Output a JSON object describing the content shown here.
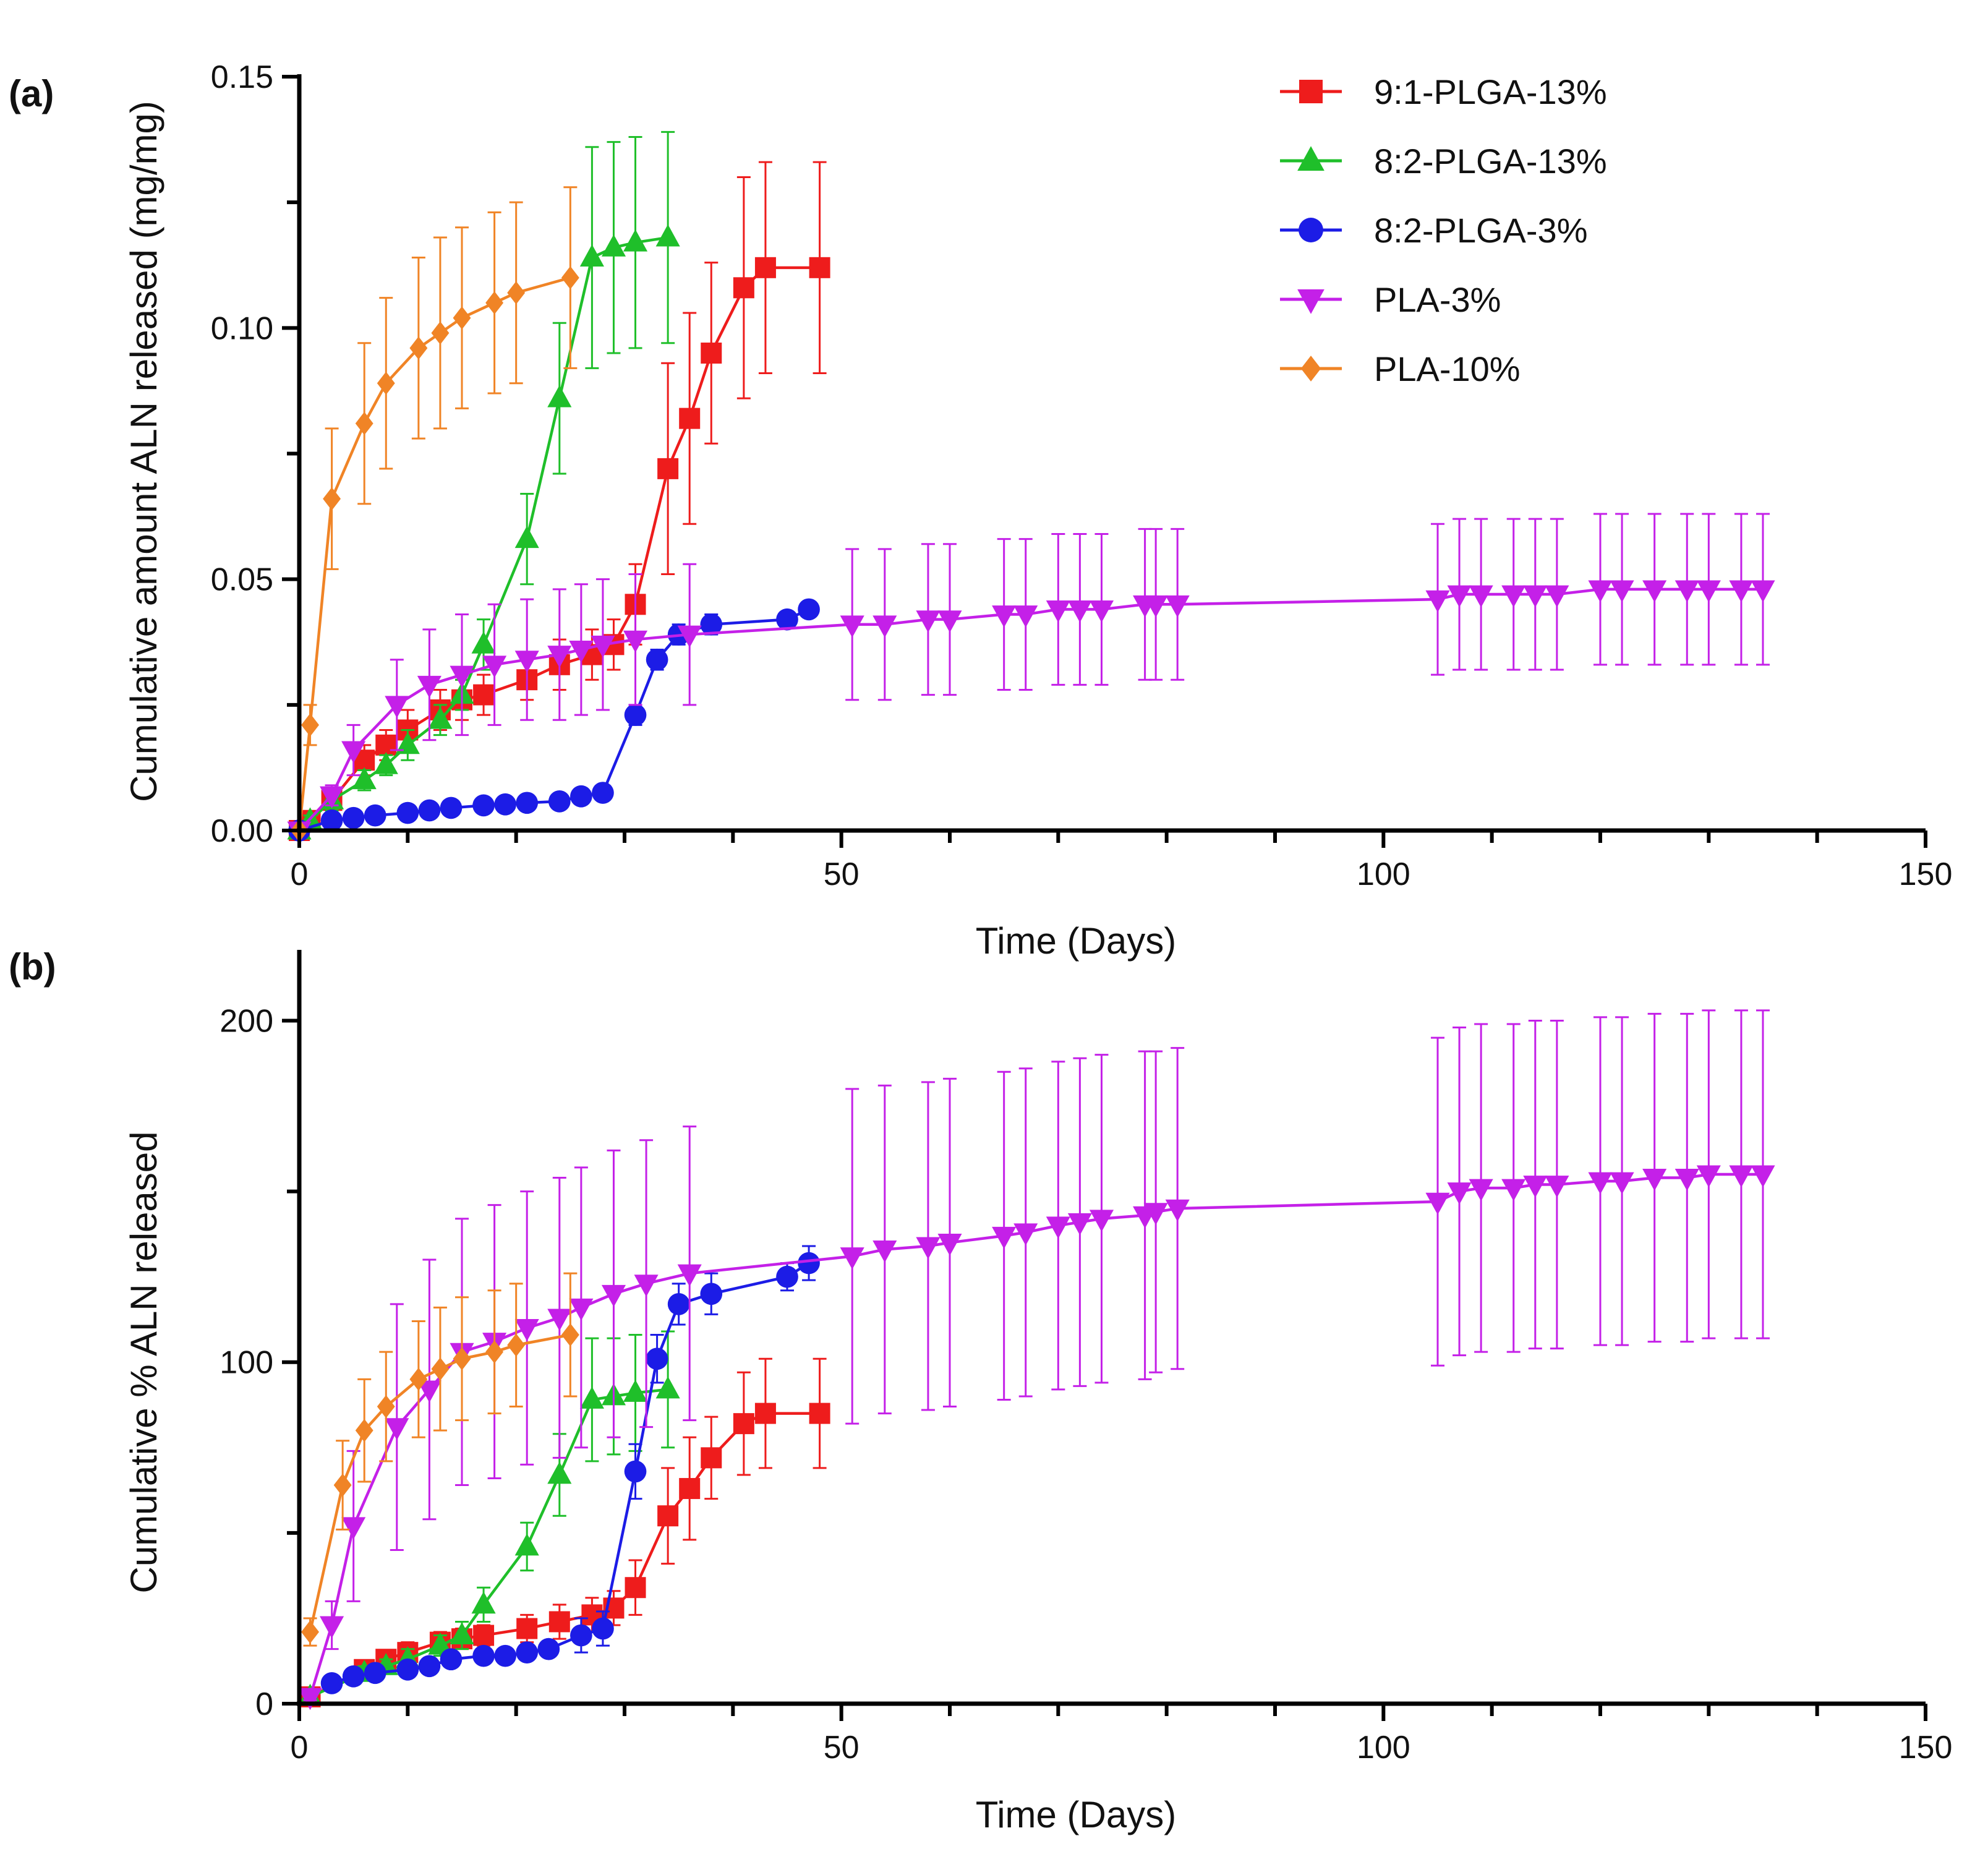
{
  "colors": {
    "9:1-PLGA-13%": "#ee1c1c",
    "8:2-PLGA-13%": "#1fbf2a",
    "8:2-PLGA-3%": "#1c1ce6",
    "PLA-3%": "#c420e8",
    "PLA-10%": "#f08426"
  },
  "legend": [
    "9:1-PLGA-13%",
    "8:2-PLGA-13%",
    "8:2-PLGA-3%",
    "PLA-3%",
    "PLA-10%"
  ],
  "chart_data": [
    {
      "type": "line",
      "panel_label": "(a)",
      "title": "",
      "xlabel": "Time (Days)",
      "ylabel": "Cumulative amount ALN released (mg/mg)",
      "xlim": [
        0,
        150
      ],
      "ylim": [
        0,
        0.15
      ],
      "xticks": [
        0,
        50,
        100,
        150
      ],
      "xtick_labels": [
        "0",
        "50",
        "100",
        "150"
      ],
      "yticks": [
        0,
        0.05,
        0.1,
        0.15
      ],
      "ytick_labels": [
        "0.00",
        "0.05",
        "0.10",
        "0.15"
      ],
      "series": [
        {
          "name": "9:1-PLGA-13%",
          "marker": "square",
          "x": [
            0,
            1,
            3,
            6,
            8,
            10,
            13,
            15,
            17,
            21,
            24,
            27,
            29,
            31,
            34,
            36,
            38,
            41,
            43,
            48
          ],
          "y": [
            0,
            0.002,
            0.006,
            0.014,
            0.017,
            0.02,
            0.024,
            0.026,
            0.027,
            0.03,
            0.033,
            0.035,
            0.037,
            0.045,
            0.072,
            0.082,
            0.095,
            0.108,
            0.112,
            0.112
          ],
          "err": [
            0,
            0.001,
            0.002,
            0.003,
            0.003,
            0.004,
            0.004,
            0.004,
            0.004,
            0.004,
            0.005,
            0.005,
            0.005,
            0.008,
            0.021,
            0.021,
            0.018,
            0.022,
            0.021,
            0.021
          ]
        },
        {
          "name": "8:2-PLGA-13%",
          "marker": "triangle-up",
          "x": [
            0,
            1,
            3,
            6,
            8,
            10,
            13,
            15,
            17,
            21,
            24,
            27,
            29,
            31,
            34
          ],
          "y": [
            0,
            0.002,
            0.006,
            0.01,
            0.013,
            0.017,
            0.022,
            0.027,
            0.037,
            0.058,
            0.086,
            0.114,
            0.116,
            0.117,
            0.118
          ],
          "err": [
            0,
            0.001,
            0.002,
            0.002,
            0.002,
            0.003,
            0.003,
            0.003,
            0.005,
            0.009,
            0.015,
            0.022,
            0.021,
            0.021,
            0.021
          ]
        },
        {
          "name": "8:2-PLGA-3%",
          "marker": "circle",
          "x": [
            0,
            3,
            5,
            7,
            10,
            12,
            14,
            17,
            19,
            21,
            24,
            26,
            28,
            31,
            33,
            35,
            38,
            45,
            47
          ],
          "y": [
            0,
            0.002,
            0.0025,
            0.003,
            0.0035,
            0.004,
            0.0045,
            0.005,
            0.0052,
            0.0055,
            0.0058,
            0.0068,
            0.0075,
            0.023,
            0.034,
            0.039,
            0.041,
            0.042,
            0.044
          ],
          "err": [
            0,
            0.0005,
            0.0005,
            0.0005,
            0.0005,
            0.0005,
            0.0005,
            0.0005,
            0.0005,
            0.0005,
            0.0005,
            0.001,
            0.001,
            0.002,
            0.002,
            0.002,
            0.002,
            0.001,
            0.001
          ]
        },
        {
          "name": "PLA-3%",
          "marker": "triangle-down",
          "x": [
            0,
            3,
            5,
            9,
            12,
            15,
            18,
            21,
            24,
            26,
            28,
            31,
            36,
            51,
            54,
            58,
            60,
            65,
            67,
            70,
            72,
            74,
            78,
            79,
            81,
            105,
            107,
            109,
            112,
            114,
            116,
            120,
            122,
            125,
            128,
            130,
            133,
            135
          ],
          "y": [
            0,
            0.007,
            0.016,
            0.025,
            0.029,
            0.031,
            0.033,
            0.034,
            0.035,
            0.036,
            0.037,
            0.038,
            0.039,
            0.041,
            0.041,
            0.042,
            0.042,
            0.043,
            0.043,
            0.044,
            0.044,
            0.044,
            0.045,
            0.045,
            0.045,
            0.046,
            0.047,
            0.047,
            0.047,
            0.047,
            0.047,
            0.048,
            0.048,
            0.048,
            0.048,
            0.048,
            0.048,
            0.048
          ],
          "err": [
            0,
            0.002,
            0.005,
            0.009,
            0.011,
            0.012,
            0.012,
            0.012,
            0.013,
            0.013,
            0.013,
            0.013,
            0.014,
            0.015,
            0.015,
            0.015,
            0.015,
            0.015,
            0.015,
            0.015,
            0.015,
            0.015,
            0.015,
            0.015,
            0.015,
            0.015,
            0.015,
            0.015,
            0.015,
            0.015,
            0.015,
            0.015,
            0.015,
            0.015,
            0.015,
            0.015,
            0.015,
            0.015
          ]
        },
        {
          "name": "PLA-10%",
          "marker": "diamond",
          "x": [
            0,
            1,
            3,
            6,
            8,
            11,
            13,
            15,
            18,
            20,
            25
          ],
          "y": [
            0,
            0.021,
            0.066,
            0.081,
            0.089,
            0.096,
            0.099,
            0.102,
            0.105,
            0.107,
            0.11
          ],
          "err": [
            0,
            0.004,
            0.014,
            0.016,
            0.017,
            0.018,
            0.019,
            0.018,
            0.018,
            0.018,
            0.018
          ]
        }
      ]
    },
    {
      "type": "line",
      "panel_label": "(b)",
      "title": "",
      "xlabel": "Time (Days)",
      "ylabel": "Cumulative % ALN released",
      "xlim": [
        0,
        150
      ],
      "ylim": [
        0,
        220
      ],
      "xticks": [
        0,
        50,
        100,
        150
      ],
      "xtick_labels": [
        "0",
        "50",
        "100",
        "150"
      ],
      "yticks": [
        0,
        100,
        200
      ],
      "ytick_labels": [
        "0",
        "100",
        "200"
      ],
      "series": [
        {
          "name": "9:1-PLGA-13%",
          "marker": "square",
          "x": [
            1,
            6,
            8,
            10,
            13,
            15,
            17,
            21,
            24,
            27,
            29,
            31,
            34,
            36,
            38,
            41,
            43,
            48
          ],
          "y": [
            2,
            10,
            13,
            15,
            18,
            19,
            20,
            22,
            24,
            26,
            28,
            34,
            55,
            63,
            72,
            82,
            85,
            85
          ],
          "err": [
            1,
            2,
            2,
            3,
            3,
            3,
            3,
            4,
            5,
            5,
            5,
            8,
            14,
            15,
            12,
            15,
            16,
            16
          ]
        },
        {
          "name": "8:2-PLGA-13%",
          "marker": "triangle-up",
          "x": [
            1,
            6,
            8,
            10,
            13,
            15,
            17,
            21,
            24,
            27,
            29,
            31,
            34
          ],
          "y": [
            2,
            9,
            11,
            13,
            17,
            20,
            29,
            46,
            67,
            89,
            90,
            91,
            92
          ],
          "err": [
            1,
            2,
            2,
            3,
            3,
            4,
            5,
            7,
            12,
            18,
            17,
            17,
            17
          ]
        },
        {
          "name": "8:2-PLGA-3%",
          "marker": "circle",
          "x": [
            3,
            5,
            7,
            10,
            12,
            14,
            17,
            19,
            21,
            23,
            26,
            28,
            31,
            33,
            35,
            38,
            45,
            47
          ],
          "y": [
            6,
            8,
            9,
            10,
            11,
            13,
            14,
            14,
            15,
            16,
            20,
            22,
            68,
            101,
            117,
            120,
            125,
            129
          ],
          "err": [
            1,
            1,
            1,
            1,
            1,
            1,
            1,
            1,
            1,
            1,
            5,
            5,
            8,
            7,
            6,
            6,
            4,
            5
          ]
        },
        {
          "name": "PLA-3%",
          "marker": "triangle-down",
          "x": [
            1,
            3,
            5,
            9,
            12,
            15,
            18,
            21,
            24,
            26,
            29,
            32,
            36,
            51,
            54,
            58,
            60,
            65,
            67,
            70,
            72,
            74,
            78,
            79,
            81,
            105,
            107,
            109,
            112,
            114,
            116,
            120,
            122,
            125,
            128,
            130,
            133,
            135
          ],
          "y": [
            2,
            23,
            52,
            81,
            92,
            103,
            106,
            110,
            113,
            116,
            120,
            123,
            126,
            131,
            133,
            134,
            135,
            137,
            138,
            140,
            141,
            142,
            143,
            144,
            145,
            147,
            150,
            151,
            151,
            152,
            152,
            153,
            153,
            154,
            154,
            155,
            155,
            155
          ],
          "err": [
            1,
            7,
            22,
            36,
            38,
            39,
            40,
            40,
            41,
            41,
            42,
            42,
            43,
            49,
            48,
            48,
            48,
            48,
            48,
            48,
            48,
            48,
            48,
            47,
            47,
            48,
            48,
            48,
            48,
            48,
            48,
            48,
            48,
            48,
            48,
            48,
            48,
            48
          ]
        },
        {
          "name": "PLA-10%",
          "marker": "diamond",
          "x": [
            1,
            4,
            6,
            8,
            11,
            13,
            15,
            18,
            20,
            25
          ],
          "y": [
            21,
            64,
            80,
            87,
            95,
            98,
            101,
            103,
            105,
            108
          ],
          "err": [
            4,
            13,
            15,
            16,
            17,
            18,
            18,
            18,
            18,
            18
          ]
        }
      ]
    }
  ]
}
